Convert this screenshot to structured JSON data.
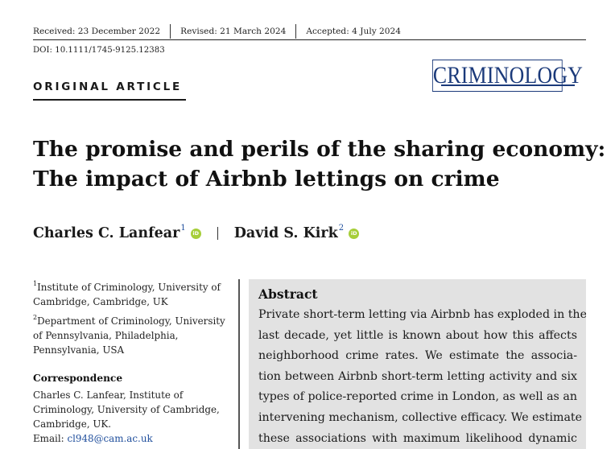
{
  "header": {
    "received": "Received: 23 December 2022",
    "revised": "Revised: 21 March 2024",
    "accepted": "Accepted: 4 July 2024",
    "doi": "DOI: 10.1111/1745-9125.12383",
    "journal": "CRIMINOLOGY",
    "article_type": "ORIGINAL ARTICLE",
    "accent_color": "#1b3a7a"
  },
  "title": {
    "line1": "The promise and perils of the sharing economy:",
    "line2": "The impact of Airbnb lettings on crime"
  },
  "authors": [
    {
      "name": "Charles C. Lanfear",
      "affil": "1",
      "icon": "orcid-icon"
    },
    {
      "name": "David S. Kirk",
      "affil": "2",
      "icon": "orcid-icon"
    }
  ],
  "orcid_icon_text": "iD",
  "affiliations": [
    {
      "num": "1",
      "lines": [
        "Institute of Criminology, University of",
        "Cambridge, Cambridge, UK"
      ]
    },
    {
      "num": "2",
      "lines": [
        "Department of Criminology, University",
        "of Pennsylvania, Philadelphia,",
        "Pennsylvania, USA"
      ]
    }
  ],
  "correspondence": {
    "heading": "Correspondence",
    "lines": [
      "Charles C. Lanfear, Institute of",
      "Criminology, University of Cambridge,",
      "Cambridge, UK."
    ],
    "email_label": "Email: ",
    "email": "cl948@cam.ac.uk"
  },
  "abstract": {
    "heading": "Abstract",
    "lines": [
      "Private short-term letting via Airbnb has exploded in the",
      "last decade, yet little is known about how this affects",
      "neighborhood crime rates. We estimate the associa-",
      "tion between Airbnb short-term letting activity and six",
      "types of police-reported crime in London, as well as an",
      "intervening mechanism, collective efficacy. We estimate",
      "these associations with maximum likelihood dynamic"
    ]
  }
}
